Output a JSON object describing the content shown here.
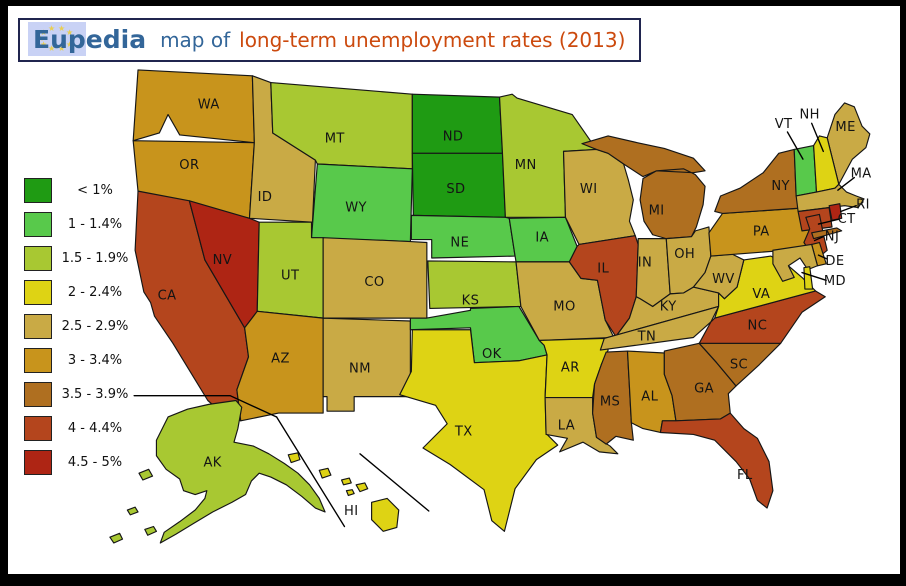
{
  "header": {
    "brand": "Eupedia",
    "title_prefix": "map of",
    "title_accent": "long-term unemployment rates (2013)",
    "brand_color": "#336699",
    "accent_color": "#cc4a0e",
    "logo": {
      "name": "eu-stars-logo",
      "bg": "#c9d2f5",
      "star_color": "#e9cf52",
      "star": "★"
    }
  },
  "legend": {
    "items": [
      {
        "label": "< 1%",
        "color": "#1f9b13"
      },
      {
        "label": "1 - 1.4%",
        "color": "#58c94b"
      },
      {
        "label": "1.5 - 1.9%",
        "color": "#a8c832"
      },
      {
        "label": "2 - 2.4%",
        "color": "#ded314"
      },
      {
        "label": "2.5 - 2.9%",
        "color": "#c9aa45"
      },
      {
        "label": "3 - 3.4%",
        "color": "#c8941c"
      },
      {
        "label": "3.5 - 3.9%",
        "color": "#af6f20"
      },
      {
        "label": "4 - 4.4%",
        "color": "#b4451d"
      },
      {
        "label": "4.5 - 5%",
        "color": "#ae2514"
      }
    ]
  },
  "map": {
    "states": [
      {
        "abbr": "WA",
        "rate": "3 - 3.4%"
      },
      {
        "abbr": "OR",
        "rate": "3 - 3.4%"
      },
      {
        "abbr": "CA",
        "rate": "4 - 4.4%"
      },
      {
        "abbr": "NV",
        "rate": "4.5 - 5%"
      },
      {
        "abbr": "ID",
        "rate": "2.5 - 2.9%"
      },
      {
        "abbr": "MT",
        "rate": "1.5 - 1.9%"
      },
      {
        "abbr": "WY",
        "rate": "1 - 1.4%"
      },
      {
        "abbr": "UT",
        "rate": "1.5 - 1.9%"
      },
      {
        "abbr": "CO",
        "rate": "2.5 - 2.9%"
      },
      {
        "abbr": "AZ",
        "rate": "3 - 3.4%"
      },
      {
        "abbr": "NM",
        "rate": "2.5 - 2.9%"
      },
      {
        "abbr": "ND",
        "rate": "< 1%"
      },
      {
        "abbr": "SD",
        "rate": "< 1%"
      },
      {
        "abbr": "NE",
        "rate": "1 - 1.4%"
      },
      {
        "abbr": "KS",
        "rate": "1.5 - 1.9%"
      },
      {
        "abbr": "OK",
        "rate": "1 - 1.4%"
      },
      {
        "abbr": "TX",
        "rate": "2 - 2.4%"
      },
      {
        "abbr": "MN",
        "rate": "1.5 - 1.9%"
      },
      {
        "abbr": "IA",
        "rate": "1 - 1.4%"
      },
      {
        "abbr": "MO",
        "rate": "2.5 - 2.9%"
      },
      {
        "abbr": "AR",
        "rate": "2 - 2.4%"
      },
      {
        "abbr": "LA",
        "rate": "2.5 - 2.9%"
      },
      {
        "abbr": "WI",
        "rate": "2.5 - 2.9%"
      },
      {
        "abbr": "IL",
        "rate": "4 - 4.4%"
      },
      {
        "abbr": "IN",
        "rate": "2.5 - 2.9%"
      },
      {
        "abbr": "MI",
        "rate": "3.5 - 3.9%"
      },
      {
        "abbr": "OH",
        "rate": "2.5 - 2.9%"
      },
      {
        "abbr": "KY",
        "rate": "2.5 - 2.9%"
      },
      {
        "abbr": "TN",
        "rate": "2.5 - 2.9%"
      },
      {
        "abbr": "MS",
        "rate": "3.5 - 3.9%"
      },
      {
        "abbr": "AL",
        "rate": "3 - 3.4%"
      },
      {
        "abbr": "GA",
        "rate": "3.5 - 3.9%"
      },
      {
        "abbr": "FL",
        "rate": "4 - 4.4%"
      },
      {
        "abbr": "SC",
        "rate": "3.5 - 3.9%"
      },
      {
        "abbr": "NC",
        "rate": "4 - 4.4%"
      },
      {
        "abbr": "VA",
        "rate": "2 - 2.4%"
      },
      {
        "abbr": "WV",
        "rate": "2.5 - 2.9%"
      },
      {
        "abbr": "PA",
        "rate": "3 - 3.4%"
      },
      {
        "abbr": "NY",
        "rate": "3.5 - 3.9%"
      },
      {
        "abbr": "ME",
        "rate": "2.5 - 2.9%"
      },
      {
        "abbr": "VT",
        "rate": "1 - 1.4%"
      },
      {
        "abbr": "NH",
        "rate": "2 - 2.4%"
      },
      {
        "abbr": "MA",
        "rate": "2.5 - 2.9%"
      },
      {
        "abbr": "RI",
        "rate": "4.5 - 5%"
      },
      {
        "abbr": "CT",
        "rate": "4 - 4.4%"
      },
      {
        "abbr": "NJ",
        "rate": "4 - 4.4%"
      },
      {
        "abbr": "DE",
        "rate": "3 - 3.4%"
      },
      {
        "abbr": "MD",
        "rate": "2.5 - 2.9%"
      },
      {
        "abbr": "AK",
        "rate": "1.5 - 1.9%"
      },
      {
        "abbr": "HI",
        "rate": "2 - 2.4%"
      }
    ]
  }
}
